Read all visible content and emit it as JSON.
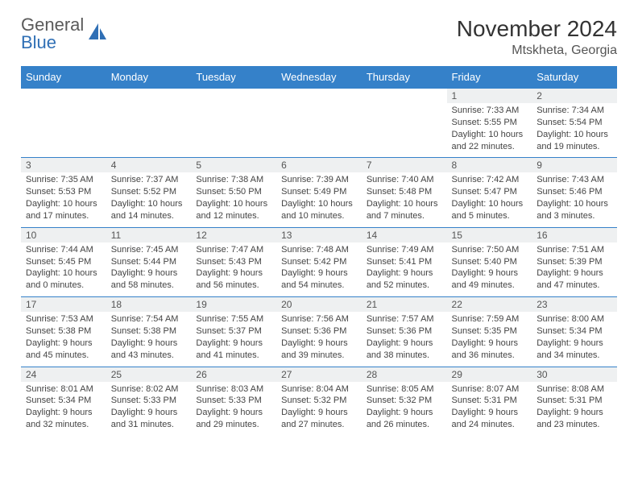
{
  "logo": {
    "word1": "General",
    "word2": "Blue",
    "icon_color": "#2f6fb5",
    "text_color": "#5a5a5a"
  },
  "title": "November 2024",
  "location": "Mtskheta, Georgia",
  "colors": {
    "header_bg": "#3581c9",
    "header_text": "#ffffff",
    "daynum_bg": "#eef0f1",
    "rule": "#3581c9",
    "body_text": "#444444",
    "title_text": "#333333"
  },
  "columns": [
    "Sunday",
    "Monday",
    "Tuesday",
    "Wednesday",
    "Thursday",
    "Friday",
    "Saturday"
  ],
  "weeks": [
    [
      null,
      null,
      null,
      null,
      null,
      {
        "n": "1",
        "sr": "Sunrise: 7:33 AM",
        "ss": "Sunset: 5:55 PM",
        "dl": "Daylight: 10 hours and 22 minutes."
      },
      {
        "n": "2",
        "sr": "Sunrise: 7:34 AM",
        "ss": "Sunset: 5:54 PM",
        "dl": "Daylight: 10 hours and 19 minutes."
      }
    ],
    [
      {
        "n": "3",
        "sr": "Sunrise: 7:35 AM",
        "ss": "Sunset: 5:53 PM",
        "dl": "Daylight: 10 hours and 17 minutes."
      },
      {
        "n": "4",
        "sr": "Sunrise: 7:37 AM",
        "ss": "Sunset: 5:52 PM",
        "dl": "Daylight: 10 hours and 14 minutes."
      },
      {
        "n": "5",
        "sr": "Sunrise: 7:38 AM",
        "ss": "Sunset: 5:50 PM",
        "dl": "Daylight: 10 hours and 12 minutes."
      },
      {
        "n": "6",
        "sr": "Sunrise: 7:39 AM",
        "ss": "Sunset: 5:49 PM",
        "dl": "Daylight: 10 hours and 10 minutes."
      },
      {
        "n": "7",
        "sr": "Sunrise: 7:40 AM",
        "ss": "Sunset: 5:48 PM",
        "dl": "Daylight: 10 hours and 7 minutes."
      },
      {
        "n": "8",
        "sr": "Sunrise: 7:42 AM",
        "ss": "Sunset: 5:47 PM",
        "dl": "Daylight: 10 hours and 5 minutes."
      },
      {
        "n": "9",
        "sr": "Sunrise: 7:43 AM",
        "ss": "Sunset: 5:46 PM",
        "dl": "Daylight: 10 hours and 3 minutes."
      }
    ],
    [
      {
        "n": "10",
        "sr": "Sunrise: 7:44 AM",
        "ss": "Sunset: 5:45 PM",
        "dl": "Daylight: 10 hours and 0 minutes."
      },
      {
        "n": "11",
        "sr": "Sunrise: 7:45 AM",
        "ss": "Sunset: 5:44 PM",
        "dl": "Daylight: 9 hours and 58 minutes."
      },
      {
        "n": "12",
        "sr": "Sunrise: 7:47 AM",
        "ss": "Sunset: 5:43 PM",
        "dl": "Daylight: 9 hours and 56 minutes."
      },
      {
        "n": "13",
        "sr": "Sunrise: 7:48 AM",
        "ss": "Sunset: 5:42 PM",
        "dl": "Daylight: 9 hours and 54 minutes."
      },
      {
        "n": "14",
        "sr": "Sunrise: 7:49 AM",
        "ss": "Sunset: 5:41 PM",
        "dl": "Daylight: 9 hours and 52 minutes."
      },
      {
        "n": "15",
        "sr": "Sunrise: 7:50 AM",
        "ss": "Sunset: 5:40 PM",
        "dl": "Daylight: 9 hours and 49 minutes."
      },
      {
        "n": "16",
        "sr": "Sunrise: 7:51 AM",
        "ss": "Sunset: 5:39 PM",
        "dl": "Daylight: 9 hours and 47 minutes."
      }
    ],
    [
      {
        "n": "17",
        "sr": "Sunrise: 7:53 AM",
        "ss": "Sunset: 5:38 PM",
        "dl": "Daylight: 9 hours and 45 minutes."
      },
      {
        "n": "18",
        "sr": "Sunrise: 7:54 AM",
        "ss": "Sunset: 5:38 PM",
        "dl": "Daylight: 9 hours and 43 minutes."
      },
      {
        "n": "19",
        "sr": "Sunrise: 7:55 AM",
        "ss": "Sunset: 5:37 PM",
        "dl": "Daylight: 9 hours and 41 minutes."
      },
      {
        "n": "20",
        "sr": "Sunrise: 7:56 AM",
        "ss": "Sunset: 5:36 PM",
        "dl": "Daylight: 9 hours and 39 minutes."
      },
      {
        "n": "21",
        "sr": "Sunrise: 7:57 AM",
        "ss": "Sunset: 5:36 PM",
        "dl": "Daylight: 9 hours and 38 minutes."
      },
      {
        "n": "22",
        "sr": "Sunrise: 7:59 AM",
        "ss": "Sunset: 5:35 PM",
        "dl": "Daylight: 9 hours and 36 minutes."
      },
      {
        "n": "23",
        "sr": "Sunrise: 8:00 AM",
        "ss": "Sunset: 5:34 PM",
        "dl": "Daylight: 9 hours and 34 minutes."
      }
    ],
    [
      {
        "n": "24",
        "sr": "Sunrise: 8:01 AM",
        "ss": "Sunset: 5:34 PM",
        "dl": "Daylight: 9 hours and 32 minutes."
      },
      {
        "n": "25",
        "sr": "Sunrise: 8:02 AM",
        "ss": "Sunset: 5:33 PM",
        "dl": "Daylight: 9 hours and 31 minutes."
      },
      {
        "n": "26",
        "sr": "Sunrise: 8:03 AM",
        "ss": "Sunset: 5:33 PM",
        "dl": "Daylight: 9 hours and 29 minutes."
      },
      {
        "n": "27",
        "sr": "Sunrise: 8:04 AM",
        "ss": "Sunset: 5:32 PM",
        "dl": "Daylight: 9 hours and 27 minutes."
      },
      {
        "n": "28",
        "sr": "Sunrise: 8:05 AM",
        "ss": "Sunset: 5:32 PM",
        "dl": "Daylight: 9 hours and 26 minutes."
      },
      {
        "n": "29",
        "sr": "Sunrise: 8:07 AM",
        "ss": "Sunset: 5:31 PM",
        "dl": "Daylight: 9 hours and 24 minutes."
      },
      {
        "n": "30",
        "sr": "Sunrise: 8:08 AM",
        "ss": "Sunset: 5:31 PM",
        "dl": "Daylight: 9 hours and 23 minutes."
      }
    ]
  ]
}
